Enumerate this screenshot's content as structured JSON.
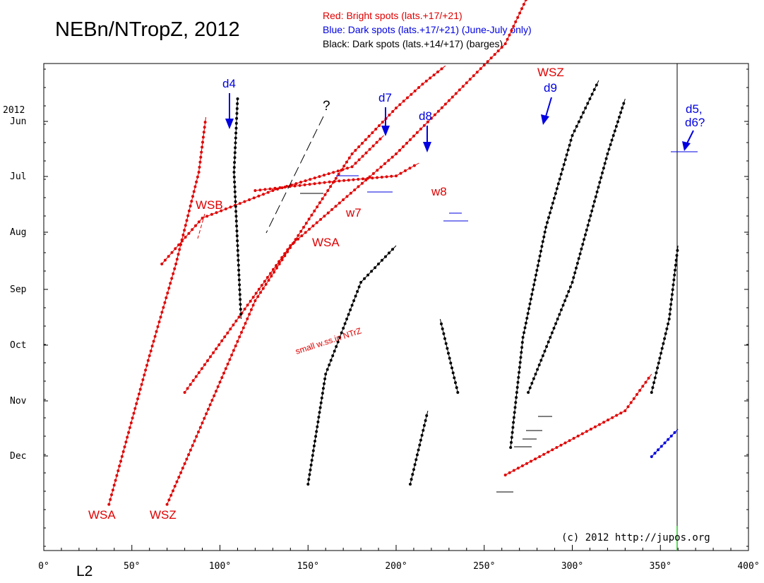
{
  "chart_data": {
    "type": "scatter",
    "title": "NEBn/NTropZ, 2012",
    "xlabel": "L2",
    "x_ticks": [
      "0°",
      "50°",
      "100°",
      "150°",
      "200°",
      "250°",
      "300°",
      "350°",
      "400°"
    ],
    "xlim": [
      0,
      400
    ],
    "year_label": "2012",
    "y_ticks": [
      "Jun",
      "Jul",
      "Aug",
      "Sep",
      "Oct",
      "Nov",
      "Dec"
    ],
    "legend": [
      {
        "text": "Red:  Bright spots (lats.+17/+21)",
        "color": "#e00000"
      },
      {
        "text": "Blue: Dark spots (lats.+17/+21) (June-July only)",
        "color": "#0000e0"
      },
      {
        "text": "Black:  Dark spots (lats.+14/+17) (barges)",
        "color": "#000000"
      }
    ],
    "annotations": [
      {
        "text": "d4",
        "color": "blue"
      },
      {
        "text": "d7",
        "color": "blue"
      },
      {
        "text": "d8",
        "color": "blue"
      },
      {
        "text": "WSZ",
        "color": "red"
      },
      {
        "text": "d9",
        "color": "blue"
      },
      {
        "text": "d5,",
        "color": "blue"
      },
      {
        "text": "d6?",
        "color": "blue"
      },
      {
        "text": "?",
        "color": "black"
      },
      {
        "text": "WSB",
        "color": "red"
      },
      {
        "text": "w7",
        "color": "red"
      },
      {
        "text": "w8",
        "color": "red"
      },
      {
        "text": "WSA",
        "color": "red"
      },
      {
        "text": "small w.ss.in NTrZ",
        "color": "red"
      },
      {
        "text": "WSA",
        "color": "red"
      },
      {
        "text": "WSZ",
        "color": "red"
      }
    ],
    "copyright": "(c) 2012 http://jupos.org",
    "series": [
      {
        "color": "#e00000",
        "tracks": [
          [
            [
              37,
              1
            ],
            [
              60,
              -80
            ],
            [
              75,
              -130
            ],
            [
              88,
              -180
            ],
            [
              92,
              -210
            ]
          ],
          [
            [
              70,
              1
            ],
            [
              120,
              -110
            ],
            [
              175,
              -190
            ],
            [
              200,
              -215
            ],
            [
              215,
              -228
            ],
            [
              228,
              -238
            ]
          ],
          [
            [
              80,
              -60
            ],
            [
              140,
              -140
            ],
            [
              200,
              -190
            ],
            [
              262,
              -250
            ],
            [
              283,
              -293
            ]
          ],
          [
            [
              262,
              -15
            ],
            [
              330,
              -50
            ],
            [
              345,
              -70
            ]
          ],
          [
            [
              67,
              -130
            ],
            [
              90,
              -155
            ],
            [
              130,
              -170
            ],
            [
              175,
              -183
            ],
            [
              193,
              -200
            ]
          ],
          [
            [
              120,
              -170
            ],
            [
              165,
              -175
            ],
            [
              200,
              -178
            ],
            [
              213,
              -185
            ]
          ]
        ]
      },
      {
        "color": "#0000e0",
        "tracks": [
          [
            [
              345,
              -25
            ],
            [
              360,
              -40
            ]
          ]
        ]
      },
      {
        "color": "#000000",
        "tracks": [
          [
            [
              150,
              -10
            ],
            [
              160,
              -70
            ],
            [
              180,
              -120
            ],
            [
              200,
              -140
            ]
          ],
          [
            [
              265,
              -30
            ],
            [
              272,
              -90
            ],
            [
              285,
              -150
            ],
            [
              300,
              -200
            ],
            [
              315,
              -230
            ]
          ],
          [
            [
              275,
              -60
            ],
            [
              300,
              -120
            ],
            [
              320,
              -190
            ],
            [
              330,
              -220
            ]
          ],
          [
            [
              345,
              -60
            ],
            [
              355,
              -100
            ],
            [
              360,
              -140
            ]
          ],
          [
            [
              208,
              -10
            ],
            [
              218,
              -50
            ]
          ],
          [
            [
              235,
              -60
            ],
            [
              225,
              -100
            ]
          ],
          [
            [
              110,
              -220
            ],
            [
              108,
              -180
            ],
            [
              110,
              -140
            ],
            [
              112,
              -100
            ]
          ]
        ]
      }
    ]
  }
}
